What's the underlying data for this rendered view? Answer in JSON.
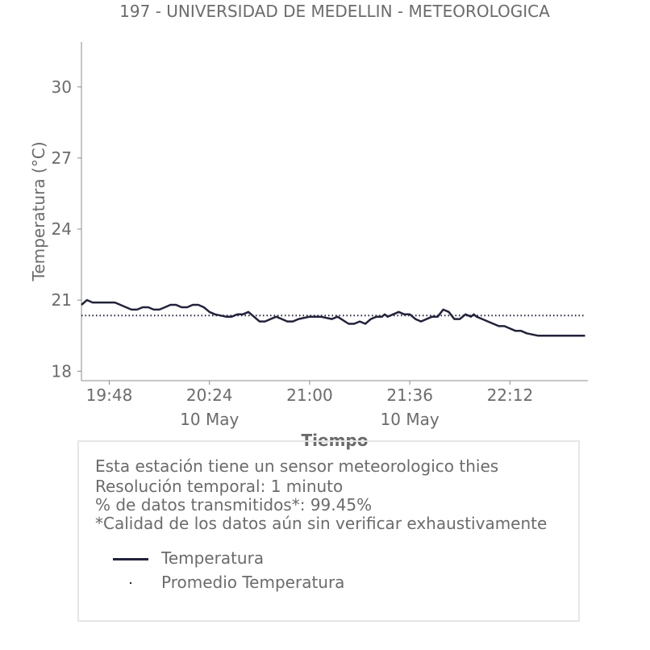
{
  "chart_data": {
    "type": "line",
    "title": "197 - UNIVERSIDAD DE MEDELLIN - METEOROLOGICA",
    "xlabel": "Tiempo",
    "ylabel": "Temperatura (°C)",
    "ylim": [
      17.6,
      31.9
    ],
    "xlim": [
      "19:38",
      "22:40"
    ],
    "y_ticks": [
      "18",
      "21",
      "24",
      "27",
      "30"
    ],
    "x_ticks": [
      {
        "time": "19:48",
        "date": ""
      },
      {
        "time": "20:24",
        "date": "10 May"
      },
      {
        "time": "21:00",
        "date": ""
      },
      {
        "time": "21:36",
        "date": "10 May"
      },
      {
        "time": "22:12",
        "date": ""
      }
    ],
    "grid": false,
    "series": [
      {
        "name": "Temperatura",
        "color": "#22223b",
        "style": "solid",
        "x": [
          "19:38",
          "19:40",
          "19:42",
          "19:46",
          "19:50",
          "19:52",
          "19:54",
          "19:56",
          "19:58",
          "20:00",
          "20:02",
          "20:04",
          "20:06",
          "20:08",
          "20:10",
          "20:12",
          "20:14",
          "20:16",
          "20:18",
          "20:20",
          "20:22",
          "20:24",
          "20:26",
          "20:30",
          "20:32",
          "20:34",
          "20:36",
          "20:38",
          "20:40",
          "20:42",
          "20:44",
          "20:46",
          "20:48",
          "20:50",
          "20:52",
          "20:54",
          "20:56",
          "21:00",
          "21:02",
          "21:04",
          "21:08",
          "21:10",
          "21:14",
          "21:16",
          "21:18",
          "21:20",
          "21:22",
          "21:24",
          "21:26",
          "21:27",
          "21:28",
          "21:30",
          "21:32",
          "21:34",
          "21:36",
          "21:38",
          "21:40",
          "21:44",
          "21:46",
          "21:48",
          "21:50",
          "21:52",
          "21:54",
          "21:56",
          "21:58",
          "21:59",
          "22:00",
          "22:02",
          "22:06",
          "22:08",
          "22:10",
          "22:12",
          "22:14",
          "22:16",
          "22:18",
          "22:22",
          "22:24",
          "22:26",
          "22:28",
          "22:30",
          "22:32",
          "22:34",
          "22:36",
          "22:38",
          "22:39"
        ],
        "values": [
          20.8,
          21.0,
          20.9,
          20.9,
          20.9,
          20.8,
          20.7,
          20.6,
          20.6,
          20.7,
          20.7,
          20.6,
          20.6,
          20.7,
          20.8,
          20.8,
          20.7,
          20.7,
          20.8,
          20.8,
          20.7,
          20.5,
          20.4,
          20.3,
          20.3,
          20.4,
          20.4,
          20.5,
          20.3,
          20.1,
          20.1,
          20.2,
          20.3,
          20.2,
          20.1,
          20.1,
          20.2,
          20.3,
          20.3,
          20.3,
          20.2,
          20.3,
          20.0,
          20.0,
          20.1,
          20.0,
          20.2,
          20.3,
          20.3,
          20.4,
          20.3,
          20.4,
          20.5,
          20.4,
          20.4,
          20.2,
          20.1,
          20.3,
          20.3,
          20.6,
          20.5,
          20.2,
          20.2,
          20.4,
          20.3,
          20.4,
          20.3,
          20.2,
          20.0,
          19.9,
          19.9,
          19.8,
          19.7,
          19.7,
          19.6,
          19.5,
          19.5,
          19.5,
          19.5,
          19.5,
          19.5,
          19.5,
          19.5,
          19.5,
          19.5
        ]
      },
      {
        "name": "Promedio Temperatura",
        "color": "#22223b",
        "style": "dotted",
        "x": [
          "19:38",
          "22:39"
        ],
        "values": [
          20.35,
          20.35
        ]
      }
    ]
  },
  "info": {
    "line1": "Esta estación tiene un sensor meteorologico thies",
    "line2": "Resolución temporal: 1 minuto",
    "line3": "% de datos transmitidos*: 99.45%",
    "line4": "*Calidad de los datos aún sin verificar exhaustivamente"
  },
  "legend": {
    "item1": "Temperatura",
    "item2": "Promedio Temperatura"
  }
}
